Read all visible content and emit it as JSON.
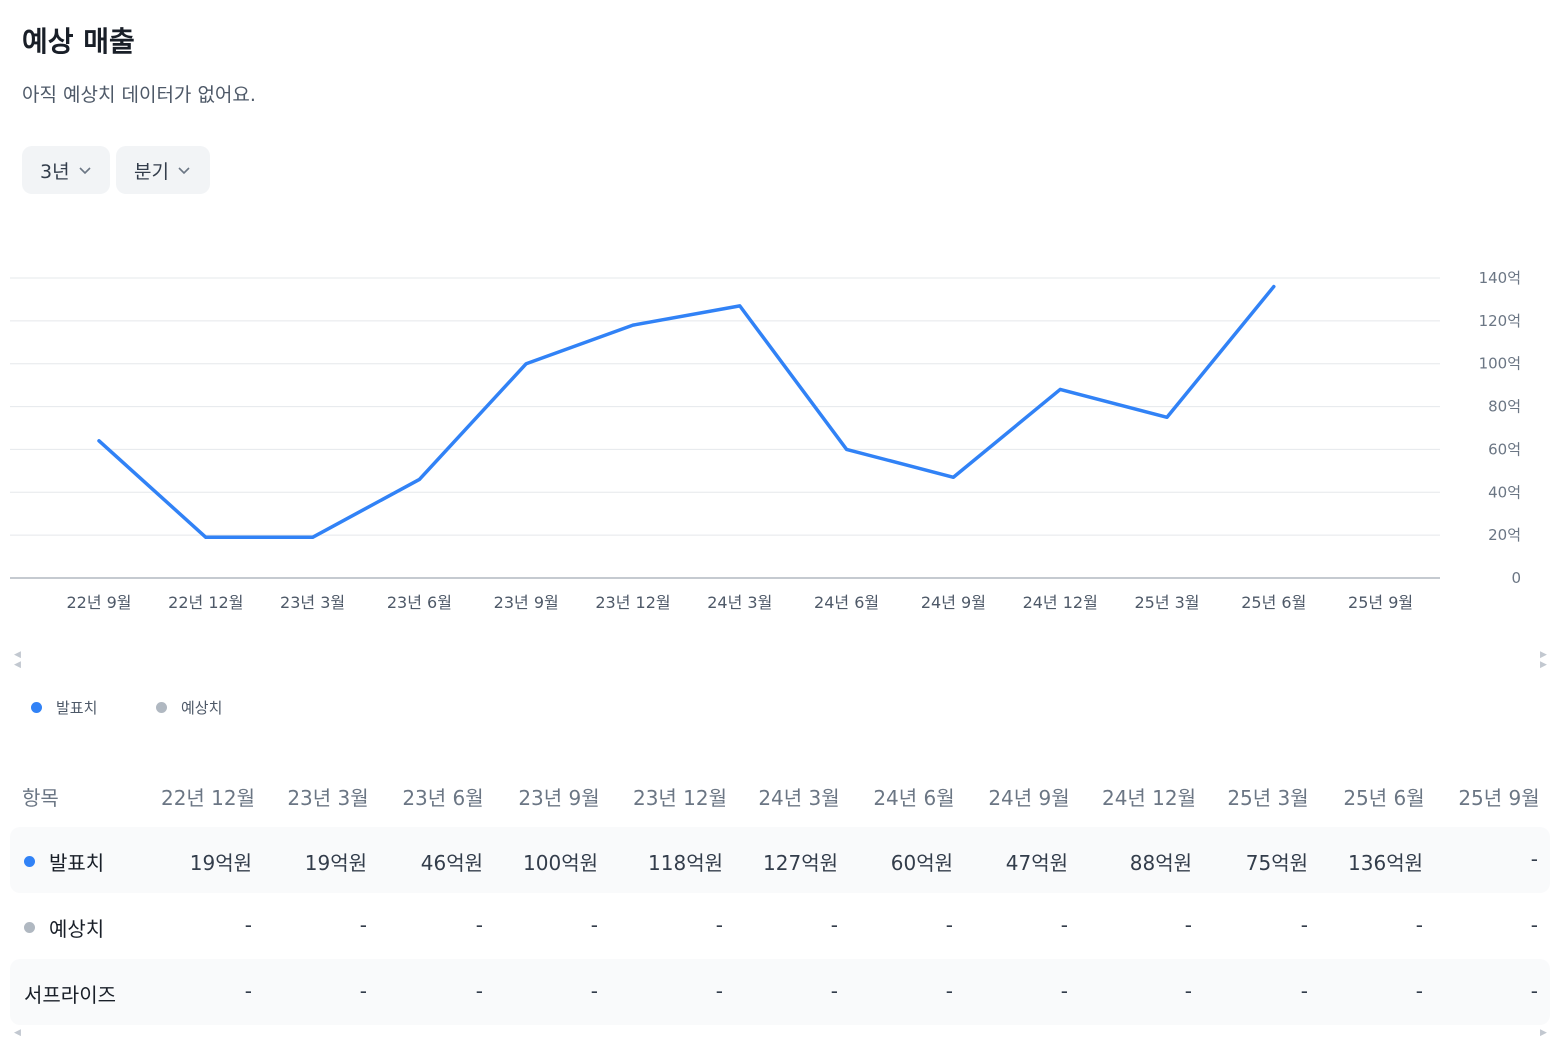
{
  "header": {
    "title": "예상 매출",
    "subtitle": "아직 예상치 데이터가 없어요."
  },
  "controls": {
    "period": "3년",
    "interval": "분기"
  },
  "legend": {
    "actual": "발표치",
    "estimate": "예상치"
  },
  "colors": {
    "actual": "#3182f6",
    "estimate": "#b0b8c1",
    "grid": "#e5e8eb",
    "axis": "#8b95a1"
  },
  "chart_data": {
    "type": "line",
    "categories": [
      "22년 9월",
      "22년 12월",
      "23년 3월",
      "23년 6월",
      "23년 9월",
      "23년 12월",
      "24년 3월",
      "24년 6월",
      "24년 9월",
      "24년 12월",
      "25년 3월",
      "25년 6월",
      "25년 9월"
    ],
    "series": [
      {
        "name": "발표치",
        "values": [
          64,
          19,
          19,
          46,
          100,
          118,
          127,
          60,
          47,
          88,
          75,
          136,
          null
        ]
      }
    ],
    "y_ticks": [
      "0",
      "20억",
      "40억",
      "60억",
      "80억",
      "100억",
      "120억",
      "140억"
    ],
    "ylim": [
      0,
      140
    ],
    "grid": true,
    "y_axis_position": "right"
  },
  "table": {
    "header_label": "항목",
    "columns": [
      "22년 12월",
      "23년 3월",
      "23년 6월",
      "23년 9월",
      "23년 12월",
      "24년 3월",
      "24년 6월",
      "24년 9월",
      "24년 12월",
      "25년 3월",
      "25년 6월",
      "25년 9월"
    ],
    "rows": [
      {
        "label": "발표치",
        "values": [
          "19억원",
          "19억원",
          "46억원",
          "100억원",
          "118억원",
          "127억원",
          "60억원",
          "47억원",
          "88억원",
          "75억원",
          "136억원",
          "-"
        ]
      },
      {
        "label": "예상치",
        "values": [
          "-",
          "-",
          "-",
          "-",
          "-",
          "-",
          "-",
          "-",
          "-",
          "-",
          "-",
          "-"
        ]
      },
      {
        "label": "서프라이즈",
        "values": [
          "-",
          "-",
          "-",
          "-",
          "-",
          "-",
          "-",
          "-",
          "-",
          "-",
          "-",
          "-"
        ]
      }
    ]
  }
}
